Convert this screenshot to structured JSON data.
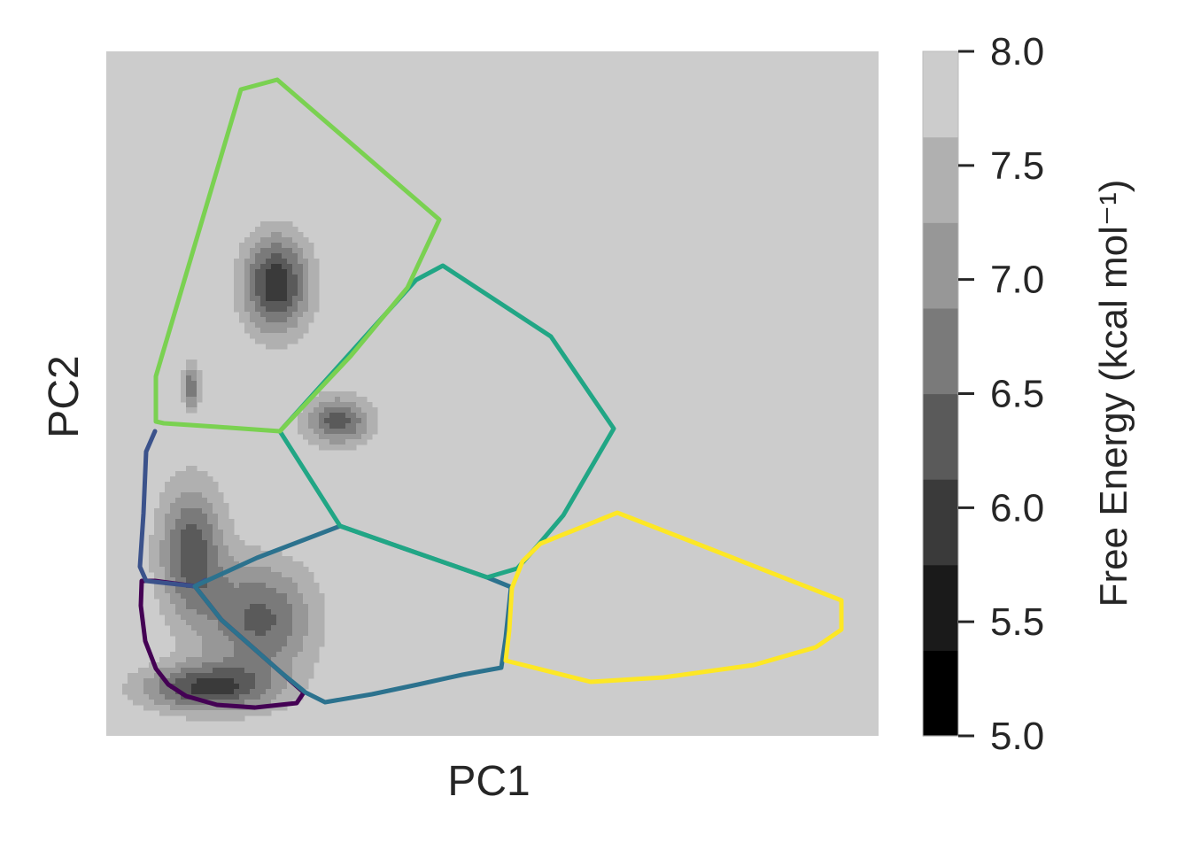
{
  "chart_data": {
    "type": "heatmap",
    "subtype": "free-energy-contour-with-state-partitions",
    "xlabel": "PC1",
    "ylabel": "PC2",
    "x_ticks": [],
    "y_ticks": [],
    "grid": false,
    "background_color": "#cccccc",
    "colorbar": {
      "label": "Free Energy (kcal mol⁻¹)",
      "range": [
        5.0,
        8.0
      ],
      "levels": [
        5.0,
        5.375,
        5.75,
        6.125,
        6.5,
        6.875,
        7.25,
        7.625,
        8.0
      ],
      "level_colors": [
        "#000000",
        "#1a1a1a",
        "#3a3a3a",
        "#5a5a5a",
        "#7a7a7a",
        "#979797",
        "#b0b0b0",
        "#cccccc"
      ],
      "tick_values": [
        5.0,
        5.5,
        6.0,
        6.5,
        7.0,
        7.5,
        8.0
      ],
      "tick_labels": [
        "5.0",
        "5.5",
        "6.0",
        "6.5",
        "7.0",
        "7.5",
        "8.0"
      ]
    },
    "states": [
      {
        "color": "#440154"
      },
      {
        "color": "#3b528b"
      },
      {
        "color": "#2c728e"
      },
      {
        "color": "#21a685"
      },
      {
        "color": "#7ad151"
      },
      {
        "color": "#fde725"
      }
    ],
    "basins": [
      {
        "center": [
          0.22,
          0.66
        ],
        "min_free_energy": 5.8
      },
      {
        "center": [
          0.3,
          0.46
        ],
        "min_free_energy": 6.3
      },
      {
        "center": [
          0.11,
          0.51
        ],
        "min_free_energy": 6.6
      },
      {
        "center": [
          0.11,
          0.27
        ],
        "min_free_energy": 6.3
      },
      {
        "center": [
          0.2,
          0.17
        ],
        "min_free_energy": 6.4
      },
      {
        "center": [
          0.13,
          0.07
        ],
        "min_free_energy": 6.1
      }
    ]
  }
}
